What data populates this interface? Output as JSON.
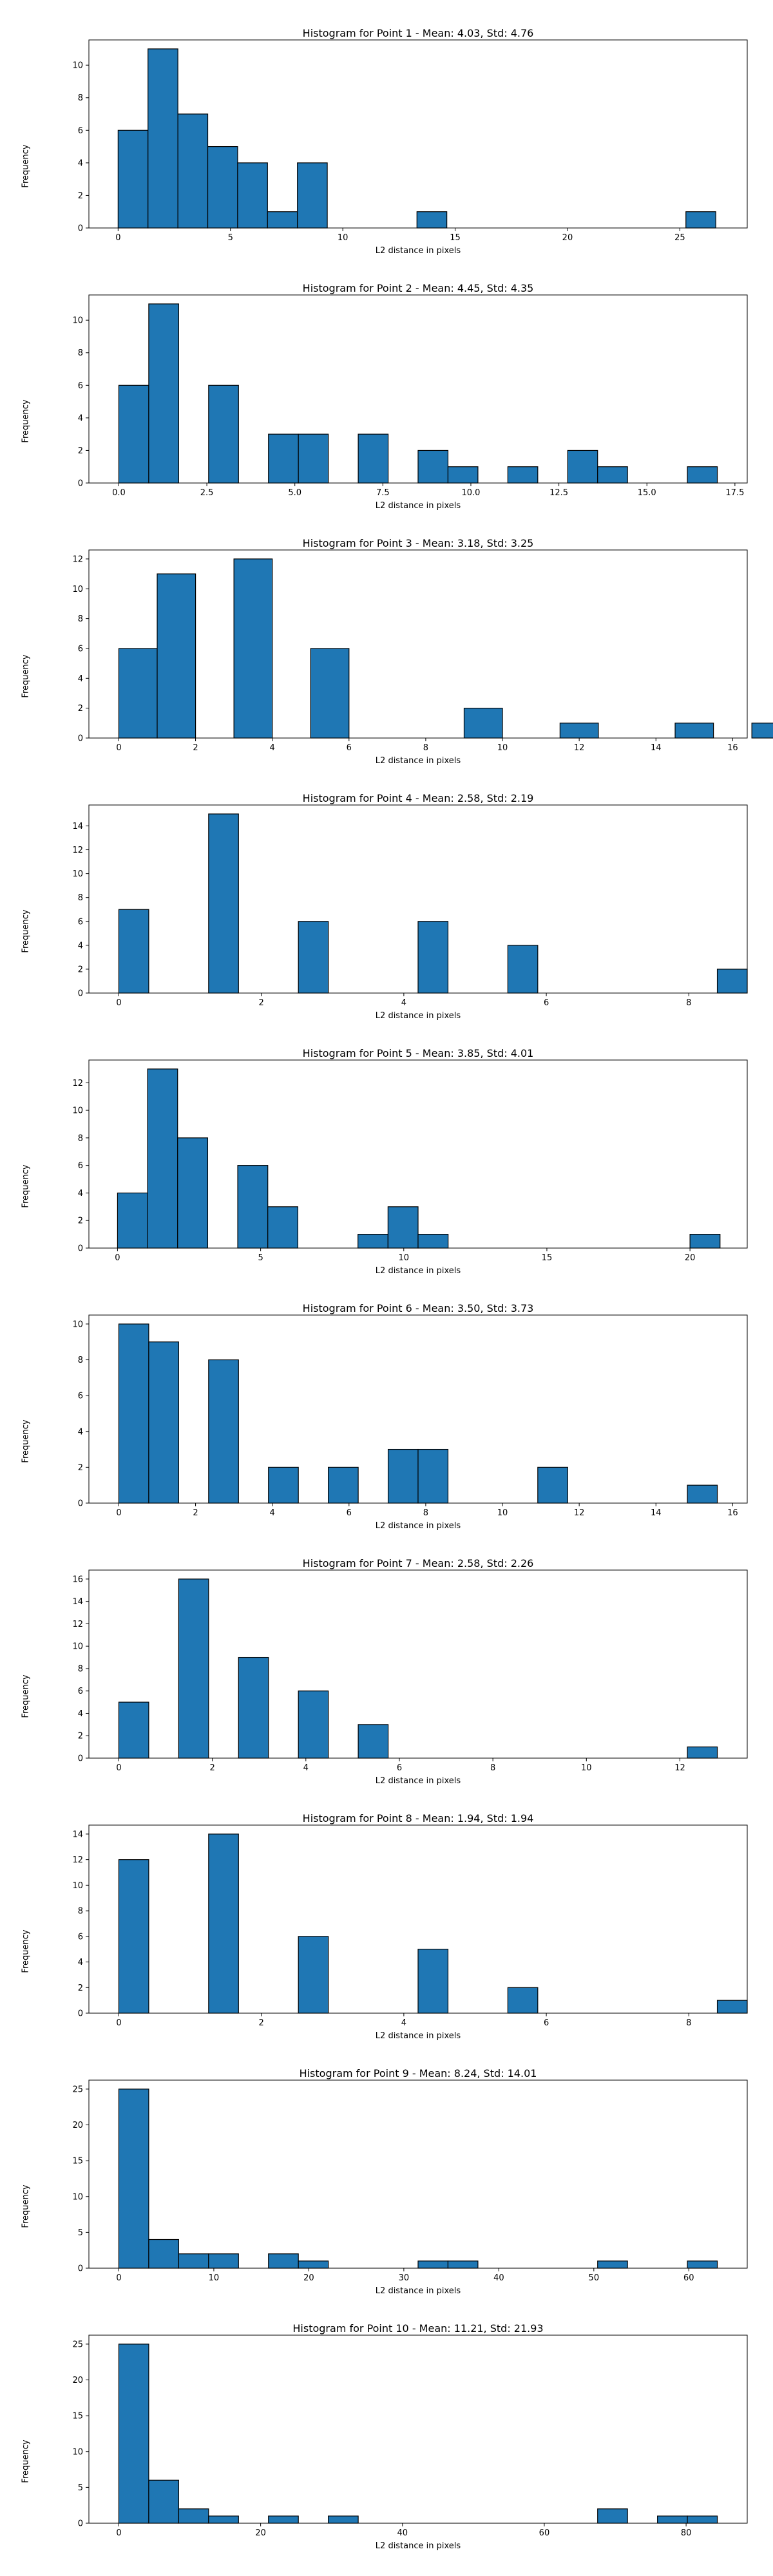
{
  "colors": {
    "bar": "#1f77b4",
    "edge": "#000000",
    "axis": "#000000"
  },
  "chart_data": [
    {
      "type": "bar",
      "title": "Histogram for Point 1 - Mean: 4.03, Std: 4.76",
      "xlabel": "L2 distance in pixels",
      "ylabel": "Frequency",
      "xlim": [
        -1.3,
        28.0
      ],
      "ylim": [
        0,
        11.55
      ],
      "xticks": [
        {
          "v": 0,
          "t": "0"
        },
        {
          "v": 5,
          "t": "5"
        },
        {
          "v": 10,
          "t": "10"
        },
        {
          "v": 15,
          "t": "15"
        },
        {
          "v": 20,
          "t": "20"
        },
        {
          "v": 25,
          "t": "25"
        }
      ],
      "yticks": [
        {
          "v": 0,
          "t": "0"
        },
        {
          "v": 2,
          "t": "2"
        },
        {
          "v": 4,
          "t": "4"
        },
        {
          "v": 6,
          "t": "6"
        },
        {
          "v": 8,
          "t": "8"
        },
        {
          "v": 10,
          "t": "10"
        }
      ],
      "bars": [
        [
          0,
          1.33,
          6
        ],
        [
          1.33,
          2.66,
          11
        ],
        [
          2.66,
          3.99,
          7
        ],
        [
          3.99,
          5.32,
          5
        ],
        [
          5.32,
          6.65,
          4
        ],
        [
          6.65,
          7.98,
          1
        ],
        [
          7.98,
          9.31,
          4
        ],
        [
          13.3,
          14.63,
          1
        ],
        [
          25.27,
          26.6,
          1
        ]
      ]
    },
    {
      "type": "bar",
      "title": "Histogram for Point 2 - Mean: 4.45, Std: 4.35",
      "xlabel": "L2 distance in pixels",
      "ylabel": "Frequency",
      "xlim": [
        -0.85,
        17.85
      ],
      "ylim": [
        0,
        11.55
      ],
      "xticks": [
        {
          "v": 0,
          "t": "0.0"
        },
        {
          "v": 2.5,
          "t": "2.5"
        },
        {
          "v": 5,
          "t": "5.0"
        },
        {
          "v": 7.5,
          "t": "7.5"
        },
        {
          "v": 10,
          "t": "10.0"
        },
        {
          "v": 12.5,
          "t": "12.5"
        },
        {
          "v": 15,
          "t": "15.0"
        },
        {
          "v": 17.5,
          "t": "17.5"
        }
      ],
      "yticks": [
        {
          "v": 0,
          "t": "0"
        },
        {
          "v": 2,
          "t": "2"
        },
        {
          "v": 4,
          "t": "4"
        },
        {
          "v": 6,
          "t": "6"
        },
        {
          "v": 8,
          "t": "8"
        },
        {
          "v": 10,
          "t": "10"
        }
      ],
      "bars": [
        [
          0,
          0.85,
          6
        ],
        [
          0.85,
          1.7,
          11
        ],
        [
          2.55,
          3.4,
          6
        ],
        [
          4.25,
          5.1,
          3
        ],
        [
          5.1,
          5.95,
          3
        ],
        [
          6.8,
          7.65,
          3
        ],
        [
          8.5,
          9.35,
          2
        ],
        [
          9.35,
          10.2,
          1
        ],
        [
          11.05,
          11.9,
          1
        ],
        [
          12.75,
          13.6,
          2
        ],
        [
          13.6,
          14.45,
          1
        ],
        [
          16.15,
          17.0,
          1
        ]
      ]
    },
    {
      "type": "bar",
      "title": "Histogram for Point 3 - Mean: 3.18, Std: 3.25",
      "xlabel": "L2 distance in pixels",
      "ylabel": "Frequency",
      "xlim": [
        -0.78,
        16.38
      ],
      "ylim": [
        0,
        12.6
      ],
      "xticks": [
        {
          "v": 0,
          "t": "0"
        },
        {
          "v": 2,
          "t": "2"
        },
        {
          "v": 4,
          "t": "4"
        },
        {
          "v": 6,
          "t": "6"
        },
        {
          "v": 8,
          "t": "8"
        },
        {
          "v": 10,
          "t": "10"
        },
        {
          "v": 12,
          "t": "12"
        },
        {
          "v": 14,
          "t": "14"
        },
        {
          "v": 16,
          "t": "16"
        }
      ],
      "yticks": [
        {
          "v": 0,
          "t": "0"
        },
        {
          "v": 2,
          "t": "2"
        },
        {
          "v": 4,
          "t": "4"
        },
        {
          "v": 6,
          "t": "6"
        },
        {
          "v": 8,
          "t": "8"
        },
        {
          "v": 10,
          "t": "10"
        },
        {
          "v": 12,
          "t": "12"
        }
      ],
      "bars": [
        [
          0,
          1.0,
          6
        ],
        [
          1.0,
          2.0,
          11
        ],
        [
          3.0,
          4.0,
          12
        ],
        [
          5.0,
          6.0,
          6
        ],
        [
          9.0,
          10.0,
          2
        ],
        [
          11.5,
          12.5,
          1
        ],
        [
          14.5,
          15.5,
          1
        ],
        [
          16.5,
          17.5,
          1
        ]
      ]
    },
    {
      "type": "bar",
      "title": "Histogram for Point 4 - Mean: 2.58, Std: 2.19",
      "xlabel": "L2 distance in pixels",
      "ylabel": "Frequency",
      "xlim": [
        -0.42,
        8.82
      ],
      "ylim": [
        0,
        15.75
      ],
      "xticks": [
        {
          "v": 0,
          "t": "0"
        },
        {
          "v": 2,
          "t": "2"
        },
        {
          "v": 4,
          "t": "4"
        },
        {
          "v": 6,
          "t": "6"
        },
        {
          "v": 8,
          "t": "8"
        }
      ],
      "yticks": [
        {
          "v": 0,
          "t": "0"
        },
        {
          "v": 2,
          "t": "2"
        },
        {
          "v": 4,
          "t": "4"
        },
        {
          "v": 6,
          "t": "6"
        },
        {
          "v": 8,
          "t": "8"
        },
        {
          "v": 10,
          "t": "10"
        },
        {
          "v": 12,
          "t": "12"
        },
        {
          "v": 14,
          "t": "14"
        }
      ],
      "bars": [
        [
          0,
          0.42,
          7
        ],
        [
          1.26,
          1.68,
          15
        ],
        [
          2.52,
          2.94,
          6
        ],
        [
          4.2,
          4.62,
          6
        ],
        [
          5.46,
          5.88,
          4
        ],
        [
          8.4,
          8.82,
          2
        ]
      ]
    },
    {
      "type": "bar",
      "title": "Histogram for Point 5 - Mean: 3.85, Std: 4.01",
      "xlabel": "L2 distance in pixels",
      "ylabel": "Frequency",
      "xlim": [
        -1.0,
        22.0
      ],
      "ylim": [
        0,
        13.65
      ],
      "xticks": [
        {
          "v": 0,
          "t": "0"
        },
        {
          "v": 5,
          "t": "5"
        },
        {
          "v": 10,
          "t": "10"
        },
        {
          "v": 15,
          "t": "15"
        },
        {
          "v": 20,
          "t": "20"
        }
      ],
      "yticks": [
        {
          "v": 0,
          "t": "0"
        },
        {
          "v": 2,
          "t": "2"
        },
        {
          "v": 4,
          "t": "4"
        },
        {
          "v": 6,
          "t": "6"
        },
        {
          "v": 8,
          "t": "8"
        },
        {
          "v": 10,
          "t": "10"
        },
        {
          "v": 12,
          "t": "12"
        }
      ],
      "bars": [
        [
          0,
          1.05,
          4
        ],
        [
          1.05,
          2.1,
          13
        ],
        [
          2.1,
          3.15,
          8
        ],
        [
          4.2,
          5.25,
          6
        ],
        [
          5.25,
          6.3,
          3
        ],
        [
          8.4,
          9.45,
          1
        ],
        [
          9.45,
          10.5,
          3
        ],
        [
          10.5,
          11.55,
          1
        ],
        [
          20.0,
          21.05,
          1
        ]
      ]
    },
    {
      "type": "bar",
      "title": "Histogram for Point 6 - Mean: 3.50, Std: 3.73",
      "xlabel": "L2 distance in pixels",
      "ylabel": "Frequency",
      "xlim": [
        -0.78,
        16.38
      ],
      "ylim": [
        0,
        10.5
      ],
      "xticks": [
        {
          "v": 0,
          "t": "0"
        },
        {
          "v": 2,
          "t": "2"
        },
        {
          "v": 4,
          "t": "4"
        },
        {
          "v": 6,
          "t": "6"
        },
        {
          "v": 8,
          "t": "8"
        },
        {
          "v": 10,
          "t": "10"
        },
        {
          "v": 12,
          "t": "12"
        },
        {
          "v": 14,
          "t": "14"
        },
        {
          "v": 16,
          "t": "16"
        }
      ],
      "yticks": [
        {
          "v": 0,
          "t": "0"
        },
        {
          "v": 2,
          "t": "2"
        },
        {
          "v": 4,
          "t": "4"
        },
        {
          "v": 6,
          "t": "6"
        },
        {
          "v": 8,
          "t": "8"
        },
        {
          "v": 10,
          "t": "10"
        }
      ],
      "bars": [
        [
          0,
          0.78,
          10
        ],
        [
          0.78,
          1.56,
          9
        ],
        [
          2.34,
          3.12,
          8
        ],
        [
          3.9,
          4.68,
          2
        ],
        [
          5.46,
          6.24,
          2
        ],
        [
          7.02,
          7.8,
          3
        ],
        [
          7.8,
          8.58,
          3
        ],
        [
          10.92,
          11.7,
          2
        ],
        [
          14.82,
          15.6,
          1
        ]
      ]
    },
    {
      "type": "bar",
      "title": "Histogram for Point 7 - Mean: 2.58, Std: 2.26",
      "xlabel": "L2 distance in pixels",
      "ylabel": "Frequency",
      "xlim": [
        -0.64,
        13.44
      ],
      "ylim": [
        0,
        16.8
      ],
      "xticks": [
        {
          "v": 0,
          "t": "0"
        },
        {
          "v": 2,
          "t": "2"
        },
        {
          "v": 4,
          "t": "4"
        },
        {
          "v": 6,
          "t": "6"
        },
        {
          "v": 8,
          "t": "8"
        },
        {
          "v": 10,
          "t": "10"
        },
        {
          "v": 12,
          "t": "12"
        }
      ],
      "yticks": [
        {
          "v": 0,
          "t": "0"
        },
        {
          "v": 2,
          "t": "2"
        },
        {
          "v": 4,
          "t": "4"
        },
        {
          "v": 6,
          "t": "6"
        },
        {
          "v": 8,
          "t": "8"
        },
        {
          "v": 10,
          "t": "10"
        },
        {
          "v": 12,
          "t": "12"
        },
        {
          "v": 14,
          "t": "14"
        },
        {
          "v": 16,
          "t": "16"
        }
      ],
      "bars": [
        [
          0,
          0.64,
          5
        ],
        [
          1.28,
          1.92,
          16
        ],
        [
          2.56,
          3.2,
          9
        ],
        [
          3.84,
          4.48,
          6
        ],
        [
          5.12,
          5.76,
          3
        ],
        [
          12.16,
          12.8,
          1
        ]
      ]
    },
    {
      "type": "bar",
      "title": "Histogram for Point 8 - Mean: 1.94, Std: 1.94",
      "xlabel": "L2 distance in pixels",
      "ylabel": "Frequency",
      "xlim": [
        -0.42,
        8.82
      ],
      "ylim": [
        0,
        14.7
      ],
      "xticks": [
        {
          "v": 0,
          "t": "0"
        },
        {
          "v": 2,
          "t": "2"
        },
        {
          "v": 4,
          "t": "4"
        },
        {
          "v": 6,
          "t": "6"
        },
        {
          "v": 8,
          "t": "8"
        }
      ],
      "yticks": [
        {
          "v": 0,
          "t": "0"
        },
        {
          "v": 2,
          "t": "2"
        },
        {
          "v": 4,
          "t": "4"
        },
        {
          "v": 6,
          "t": "6"
        },
        {
          "v": 8,
          "t": "8"
        },
        {
          "v": 10,
          "t": "10"
        },
        {
          "v": 12,
          "t": "12"
        },
        {
          "v": 14,
          "t": "14"
        }
      ],
      "bars": [
        [
          0,
          0.42,
          12
        ],
        [
          1.26,
          1.68,
          14
        ],
        [
          2.52,
          2.94,
          6
        ],
        [
          4.2,
          4.62,
          5
        ],
        [
          5.46,
          5.88,
          2
        ],
        [
          8.4,
          8.82,
          1
        ]
      ]
    },
    {
      "type": "bar",
      "title": "Histogram for Point 9 - Mean: 8.24, Std: 14.01",
      "xlabel": "L2 distance in pixels",
      "ylabel": "Frequency",
      "xlim": [
        -3.15,
        66.15
      ],
      "ylim": [
        0,
        26.25
      ],
      "xticks": [
        {
          "v": 0,
          "t": "0"
        },
        {
          "v": 10,
          "t": "10"
        },
        {
          "v": 20,
          "t": "20"
        },
        {
          "v": 30,
          "t": "30"
        },
        {
          "v": 40,
          "t": "40"
        },
        {
          "v": 50,
          "t": "50"
        },
        {
          "v": 60,
          "t": "60"
        }
      ],
      "yticks": [
        {
          "v": 0,
          "t": "0"
        },
        {
          "v": 5,
          "t": "5"
        },
        {
          "v": 10,
          "t": "10"
        },
        {
          "v": 15,
          "t": "15"
        },
        {
          "v": 20,
          "t": "20"
        },
        {
          "v": 25,
          "t": "25"
        }
      ],
      "bars": [
        [
          0,
          3.15,
          25
        ],
        [
          3.15,
          6.3,
          4
        ],
        [
          6.3,
          9.45,
          2
        ],
        [
          9.45,
          12.6,
          2
        ],
        [
          15.75,
          18.9,
          2
        ],
        [
          18.9,
          22.05,
          1
        ],
        [
          31.5,
          34.65,
          1
        ],
        [
          34.65,
          37.8,
          1
        ],
        [
          50.4,
          53.55,
          1
        ],
        [
          59.85,
          63.0,
          1
        ]
      ]
    },
    {
      "type": "bar",
      "title": "Histogram for Point 10 - Mean: 11.21, Std: 21.93",
      "xlabel": "L2 distance in pixels",
      "ylabel": "Frequency",
      "xlim": [
        -4.22,
        88.62
      ],
      "ylim": [
        0,
        26.25
      ],
      "xticks": [
        {
          "v": 0,
          "t": "0"
        },
        {
          "v": 20,
          "t": "20"
        },
        {
          "v": 40,
          "t": "40"
        },
        {
          "v": 60,
          "t": "60"
        },
        {
          "v": 80,
          "t": "80"
        }
      ],
      "yticks": [
        {
          "v": 0,
          "t": "0"
        },
        {
          "v": 5,
          "t": "5"
        },
        {
          "v": 10,
          "t": "10"
        },
        {
          "v": 15,
          "t": "15"
        },
        {
          "v": 20,
          "t": "20"
        },
        {
          "v": 25,
          "t": "25"
        }
      ],
      "bars": [
        [
          0,
          4.22,
          25
        ],
        [
          4.22,
          8.44,
          6
        ],
        [
          8.44,
          12.66,
          2
        ],
        [
          12.66,
          16.88,
          1
        ],
        [
          21.1,
          25.32,
          1
        ],
        [
          29.54,
          33.76,
          1
        ],
        [
          67.52,
          71.74,
          2
        ],
        [
          75.96,
          80.18,
          1
        ],
        [
          80.18,
          84.4,
          1
        ]
      ]
    }
  ]
}
